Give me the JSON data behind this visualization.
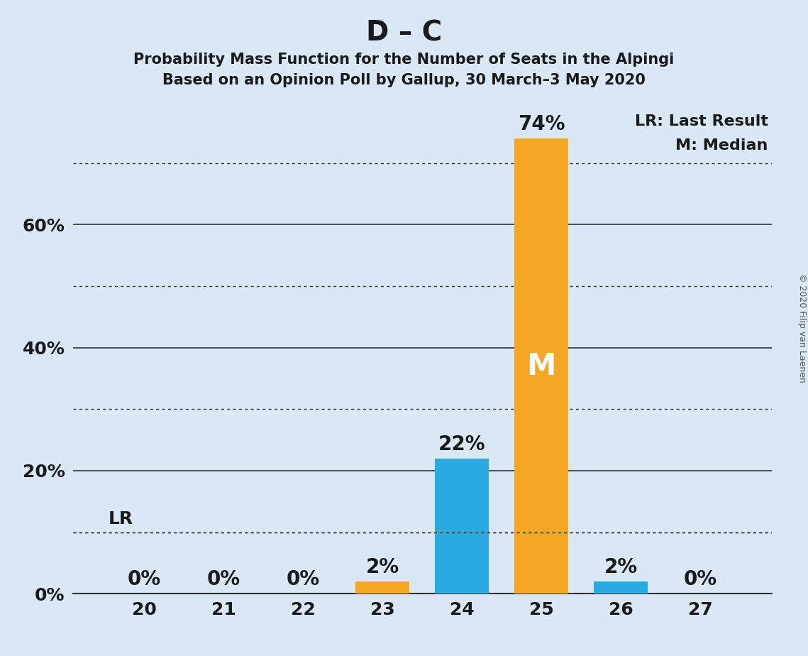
{
  "title": "D – C",
  "subtitle1": "Probability Mass Function for the Number of Seats in the Alpingi",
  "subtitle2": "Based on an Opinion Poll by Gallup, 30 March–3 May 2020",
  "copyright": "© 2020 Filip van Laenen",
  "seats": [
    20,
    21,
    22,
    23,
    24,
    25,
    26,
    27
  ],
  "probabilities": [
    0.0,
    0.0,
    0.0,
    0.02,
    0.22,
    0.74,
    0.02,
    0.0
  ],
  "bar_colors": [
    "#F5A623",
    "#F5A623",
    "#F5A623",
    "#F5A623",
    "#29ABE2",
    "#F5A623",
    "#29ABE2",
    "#F5A623"
  ],
  "median_seat": 25,
  "last_result_seat": 23,
  "last_result_level": 0.1,
  "background_color": "#DAE8F5",
  "grid_color": "#333333",
  "bar_edge_color": "#333333",
  "ylim": [
    0,
    0.8
  ],
  "solid_gridlines": [
    0.2,
    0.4,
    0.6
  ],
  "dotted_gridlines": [
    0.1,
    0.3,
    0.5,
    0.7
  ],
  "ytick_positions": [
    0.0,
    0.2,
    0.4,
    0.6
  ],
  "ytick_labels": [
    "0%",
    "20%",
    "40%",
    "60%"
  ],
  "title_fontsize": 28,
  "subtitle_fontsize": 15,
  "label_fontsize": 18,
  "tick_fontsize": 18,
  "annotation_fontsize": 20,
  "median_label_fontsize": 30,
  "legend_fontsize": 16,
  "copyright_fontsize": 9
}
